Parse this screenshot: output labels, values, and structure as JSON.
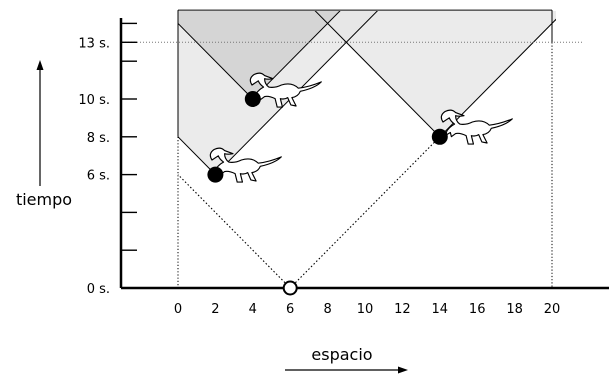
{
  "chart_data": {
    "type": "diagram",
    "x_axis": {
      "label": "espacio",
      "ticks": [
        0,
        2,
        4,
        6,
        8,
        10,
        12,
        14,
        16,
        18,
        20
      ],
      "range": [
        0,
        20
      ]
    },
    "y_axis": {
      "label": "tiempo",
      "labeled_ticks": [
        {
          "value": 0,
          "label": "0 s."
        },
        {
          "value": 6,
          "label": "6 s."
        },
        {
          "value": 8,
          "label": "8 s."
        },
        {
          "value": 10,
          "label": "10 s."
        },
        {
          "value": 13,
          "label": "13 s."
        }
      ],
      "ticks": [
        0,
        2,
        4,
        6,
        8,
        10,
        12,
        13,
        14
      ]
    },
    "origin_event": {
      "x": 6,
      "t": 0
    },
    "sighting_events": [
      {
        "x": 2,
        "t": 6
      },
      {
        "x": 4,
        "t": 10
      },
      {
        "x": 14,
        "t": 8
      }
    ],
    "reference_line_t": 13
  }
}
